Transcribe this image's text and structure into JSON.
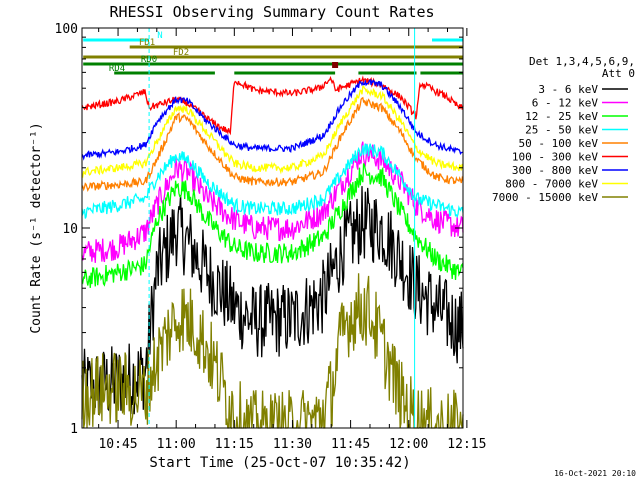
{
  "chart_data": {
    "type": "line",
    "title": "RHESSI Observing Summary Count Rates",
    "xlabel": "Start Time (25-Oct-07 10:35:42)",
    "ylabel": "Count Rate (s⁻¹ detector⁻¹)",
    "yscale": "log",
    "ylim": [
      1,
      100
    ],
    "xlim": [
      "10:35:42",
      "12:14:00"
    ],
    "x_tick_labels": [
      "10:45",
      "11:00",
      "11:15",
      "11:30",
      "11:45",
      "12:00",
      "12:15"
    ],
    "x_tick_minutes": [
      645,
      660,
      675,
      690,
      705,
      720,
      735
    ],
    "y_tick_labels": [
      "1",
      "10",
      "100"
    ],
    "y_tick_values": [
      1,
      10,
      100
    ],
    "legend": {
      "position": "right",
      "header_line1": "Det 1,3,4,5,6,9,",
      "header_line2": "Att 0"
    },
    "series": [
      {
        "name": "3 - 6 keV",
        "color": "#000000",
        "noise": 0.55,
        "x": [
          636,
          645,
          652,
          655,
          660,
          663,
          668,
          675,
          680,
          690,
          698,
          703,
          708,
          713,
          718,
          722,
          727,
          733
        ],
        "values": [
          1.6,
          1.7,
          1.9,
          6,
          10,
          8.5,
          6,
          4,
          3.4,
          3.5,
          4.5,
          8,
          10.5,
          10,
          7,
          5,
          4,
          3.2
        ]
      },
      {
        "name": "6 - 12 keV",
        "color": "#ff00ff",
        "noise": 0.18,
        "x": [
          636,
          645,
          652,
          655,
          660,
          663,
          668,
          675,
          680,
          690,
          698,
          703,
          708,
          713,
          718,
          722,
          727,
          733
        ],
        "values": [
          7.5,
          8,
          9.5,
          13,
          20,
          19,
          14,
          11,
          10,
          10,
          12,
          17,
          24,
          22,
          17,
          13,
          11,
          10
        ]
      },
      {
        "name": "12 - 25 keV",
        "color": "#00ff00",
        "noise": 0.15,
        "x": [
          636,
          645,
          652,
          655,
          660,
          663,
          668,
          675,
          680,
          690,
          698,
          703,
          708,
          713,
          718,
          722,
          727,
          733
        ],
        "values": [
          5.5,
          6,
          6.5,
          11,
          16,
          15.5,
          11,
          8,
          7.5,
          7.5,
          9,
          13,
          19,
          18,
          12,
          9,
          7,
          6
        ]
      },
      {
        "name": "25 - 50 keV",
        "color": "#00ffff",
        "noise": 0.1,
        "x": [
          636,
          645,
          652,
          655,
          660,
          663,
          668,
          675,
          680,
          690,
          698,
          703,
          708,
          713,
          718,
          722,
          727,
          733
        ],
        "values": [
          12,
          13,
          14,
          18,
          23,
          22,
          17,
          13,
          12.5,
          12.5,
          14,
          19,
          25,
          24,
          18,
          14,
          13,
          12
        ]
      },
      {
        "name": "50 - 100 keV",
        "color": "#ff8000",
        "noise": 0.06,
        "x": [
          636,
          645,
          652,
          655,
          660,
          663,
          668,
          675,
          680,
          690,
          698,
          703,
          708,
          713,
          718,
          722,
          727,
          733
        ],
        "values": [
          16,
          16.5,
          17,
          22,
          36,
          35,
          26,
          18,
          17,
          17,
          19,
          30,
          43,
          40,
          30,
          22,
          18,
          17
        ]
      },
      {
        "name": "100 - 300 keV",
        "color": "#ff0000",
        "noise": 0.05,
        "x": [
          636,
          645,
          652,
          653,
          660,
          663,
          670,
          674,
          675,
          680,
          690,
          697,
          700,
          701,
          708,
          713,
          718,
          722,
          723,
          730,
          733
        ],
        "values": [
          40,
          43,
          48,
          40,
          44,
          42,
          33,
          30,
          55,
          49,
          47,
          50,
          56,
          49,
          55,
          52,
          45,
          36,
          53,
          45,
          40
        ]
      },
      {
        "name": "300 - 800 keV",
        "color": "#0000ff",
        "noise": 0.05,
        "x": [
          636,
          645,
          652,
          655,
          660,
          663,
          668,
          675,
          680,
          690,
          698,
          703,
          708,
          713,
          718,
          722,
          727,
          733
        ],
        "values": [
          23,
          24,
          26,
          34,
          44,
          43,
          34,
          26,
          25,
          25,
          29,
          42,
          54,
          52,
          40,
          30,
          26,
          24
        ]
      },
      {
        "name": "800 - 7000 keV",
        "color": "#ffff00",
        "noise": 0.06,
        "x": [
          636,
          645,
          652,
          655,
          660,
          663,
          668,
          675,
          680,
          690,
          698,
          703,
          708,
          713,
          718,
          722,
          727,
          733
        ],
        "values": [
          19,
          20,
          21,
          27,
          40,
          39,
          30,
          21,
          20,
          20,
          23,
          35,
          49,
          46,
          34,
          25,
          21,
          20
        ]
      },
      {
        "name": "7000 - 15000 keV",
        "color": "#808000",
        "noise": 0.55,
        "x": [
          636,
          645,
          650,
          652,
          655,
          658,
          661,
          665,
          668,
          671,
          674,
          678,
          690,
          697,
          700,
          702,
          704,
          706,
          708,
          710,
          712,
          715,
          718,
          722,
          727,
          733
        ],
        "values": [
          1.5,
          1.6,
          1.5,
          1.5,
          2.2,
          3,
          3.7,
          3.2,
          2.5,
          1.8,
          1.3,
          1.0,
          1.0,
          1.1,
          1.5,
          2.5,
          3.4,
          3.8,
          4,
          3.8,
          3,
          2.1,
          1.4,
          1.1,
          1.0,
          1.0
        ]
      }
    ],
    "flag_labels": [
      "N",
      "FD1",
      "FD2",
      "RD0",
      "RD4"
    ],
    "flag_colors": {
      "N": "#00ffff",
      "FD1": "#808000",
      "FD2": "#808000",
      "RD0": "#008000",
      "RD4": "#008000",
      "marker": "#800000"
    },
    "flag_bars": [
      {
        "label": "N",
        "segments": [
          [
            636,
            653
          ],
          [
            726,
            735
          ]
        ]
      },
      {
        "label": "FD1",
        "segments": [
          [
            648,
            735
          ]
        ]
      },
      {
        "label": "FD2",
        "segments": [
          [
            636,
            735
          ]
        ]
      },
      {
        "label": "RD0",
        "segments": [
          [
            636,
            735
          ]
        ]
      },
      {
        "label": "RD4",
        "segments": [
          [
            644,
            670
          ],
          [
            675,
            701
          ],
          [
            707,
            722
          ],
          [
            723,
            735
          ]
        ]
      }
    ],
    "vertical_lines": [
      {
        "minute": 653,
        "color": "#00ffff",
        "style": "dashed"
      },
      {
        "minute": 721.5,
        "color": "#00ffff",
        "style": "solid"
      },
      {
        "minute": 734,
        "color": "#00ffff",
        "style": "dashed"
      }
    ],
    "footer_date": "16-Oct-2021 20:10"
  }
}
